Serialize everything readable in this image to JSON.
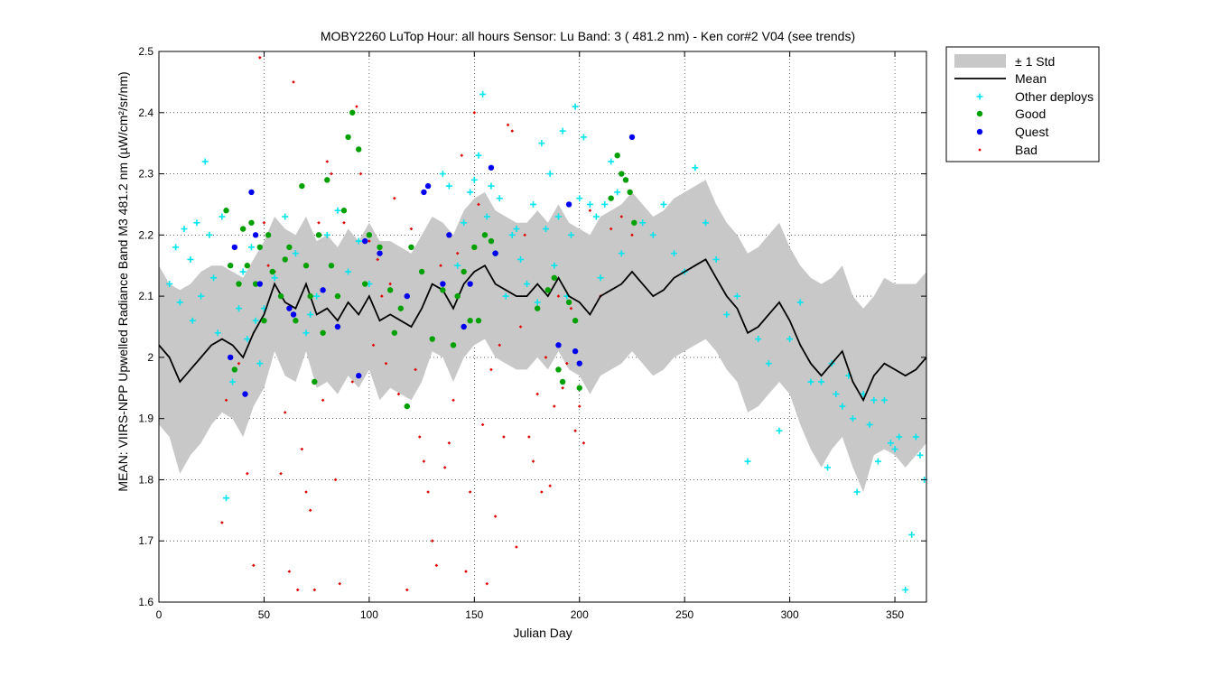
{
  "chart_data": {
    "type": "scatter",
    "title": "MOBY2260   LuTop  Hour: all hours  Sensor: Lu Band: 3 ( 481.2 nm)  - Ken cor#2 V04 (see trends)",
    "xlabel": "Julian Day",
    "ylabel": "MEAN: VIIRS-NPP Upwelled Radiance Band M3 481.2 nm (µW/cm²/sr/nm)",
    "xlim": [
      0,
      365
    ],
    "ylim": [
      1.6,
      2.5
    ],
    "xticks": [
      0,
      50,
      100,
      150,
      200,
      250,
      300,
      350
    ],
    "yticks": [
      1.6,
      1.7,
      1.8,
      1.9,
      2.0,
      2.1,
      2.2,
      2.3,
      2.4,
      2.5
    ],
    "xtick_labels": [
      "0",
      "50",
      "100",
      "150",
      "200",
      "250",
      "300",
      "350"
    ],
    "ytick_labels": [
      "1.6",
      "1.7",
      "1.8",
      "1.9",
      "2",
      "2.1",
      "2.2",
      "2.3",
      "2.4",
      "2.5"
    ],
    "grid": true,
    "legend_position": "outside-top-right",
    "legend": [
      "± 1 Std",
      "Mean",
      "Other deploys",
      "Good",
      "Quest",
      "Bad"
    ],
    "colors": {
      "std_band": "#c8c8c8",
      "mean": "#000000",
      "other": "#00e5ee",
      "good": "#00a000",
      "quest": "#0000ee",
      "bad": "#e00000"
    },
    "mean": {
      "x": [
        0,
        5,
        10,
        15,
        20,
        25,
        30,
        35,
        40,
        45,
        50,
        55,
        60,
        65,
        70,
        75,
        80,
        85,
        90,
        95,
        100,
        105,
        110,
        115,
        120,
        125,
        130,
        135,
        140,
        145,
        150,
        155,
        160,
        165,
        170,
        175,
        180,
        185,
        190,
        195,
        200,
        205,
        210,
        215,
        220,
        225,
        230,
        235,
        240,
        245,
        250,
        255,
        260,
        265,
        270,
        275,
        280,
        285,
        290,
        295,
        300,
        305,
        310,
        315,
        320,
        325,
        330,
        335,
        340,
        345,
        350,
        355,
        360,
        365
      ],
      "y": [
        2.02,
        2.0,
        1.96,
        1.98,
        2.0,
        2.02,
        2.03,
        2.02,
        2.0,
        2.04,
        2.07,
        2.12,
        2.09,
        2.08,
        2.12,
        2.07,
        2.08,
        2.06,
        2.09,
        2.07,
        2.1,
        2.06,
        2.07,
        2.06,
        2.05,
        2.08,
        2.12,
        2.11,
        2.08,
        2.12,
        2.14,
        2.15,
        2.12,
        2.11,
        2.1,
        2.1,
        2.12,
        2.1,
        2.13,
        2.1,
        2.09,
        2.07,
        2.1,
        2.11,
        2.12,
        2.14,
        2.12,
        2.1,
        2.11,
        2.13,
        2.14,
        2.15,
        2.16,
        2.13,
        2.1,
        2.08,
        2.04,
        2.05,
        2.07,
        2.09,
        2.06,
        2.02,
        1.99,
        1.97,
        1.99,
        2.01,
        1.96,
        1.93,
        1.97,
        1.99,
        1.98,
        1.97,
        1.98,
        2.0
      ]
    },
    "std": {
      "x": [
        0,
        5,
        10,
        15,
        20,
        25,
        30,
        35,
        40,
        45,
        50,
        55,
        60,
        65,
        70,
        75,
        80,
        85,
        90,
        95,
        100,
        105,
        110,
        115,
        120,
        125,
        130,
        135,
        140,
        145,
        150,
        155,
        160,
        165,
        170,
        175,
        180,
        185,
        190,
        195,
        200,
        205,
        210,
        215,
        220,
        225,
        230,
        235,
        240,
        245,
        250,
        255,
        260,
        265,
        270,
        275,
        280,
        285,
        290,
        295,
        300,
        305,
        310,
        315,
        320,
        325,
        330,
        335,
        340,
        345,
        350,
        355,
        360,
        365
      ],
      "upper": [
        2.15,
        2.12,
        2.11,
        2.12,
        2.14,
        2.15,
        2.15,
        2.14,
        2.13,
        2.16,
        2.19,
        2.23,
        2.21,
        2.2,
        2.23,
        2.19,
        2.2,
        2.18,
        2.21,
        2.19,
        2.22,
        2.19,
        2.19,
        2.18,
        2.17,
        2.2,
        2.23,
        2.22,
        2.2,
        2.24,
        2.26,
        2.27,
        2.24,
        2.23,
        2.22,
        2.22,
        2.24,
        2.22,
        2.25,
        2.22,
        2.21,
        2.2,
        2.23,
        2.24,
        2.25,
        2.27,
        2.25,
        2.23,
        2.24,
        2.26,
        2.27,
        2.28,
        2.29,
        2.25,
        2.22,
        2.2,
        2.17,
        2.18,
        2.2,
        2.22,
        2.18,
        2.15,
        2.13,
        2.12,
        2.13,
        2.15,
        2.1,
        2.08,
        2.1,
        2.13,
        2.12,
        2.12,
        2.12,
        2.14
      ],
      "lower": [
        1.89,
        1.87,
        1.81,
        1.84,
        1.86,
        1.89,
        1.91,
        1.9,
        1.87,
        1.92,
        1.95,
        2.01,
        1.97,
        1.96,
        2.01,
        1.95,
        1.96,
        1.94,
        1.97,
        1.95,
        1.98,
        1.93,
        1.95,
        1.94,
        1.93,
        1.96,
        2.01,
        2.0,
        1.96,
        2.0,
        2.02,
        2.03,
        2.0,
        1.99,
        1.98,
        1.98,
        2.0,
        1.98,
        2.01,
        1.98,
        1.97,
        1.94,
        1.97,
        1.98,
        1.99,
        2.01,
        1.99,
        1.97,
        1.98,
        2.0,
        2.01,
        2.02,
        2.03,
        2.01,
        1.98,
        1.96,
        1.91,
        1.92,
        1.94,
        1.96,
        1.94,
        1.89,
        1.85,
        1.82,
        1.85,
        1.87,
        1.82,
        1.78,
        1.84,
        1.85,
        1.84,
        1.82,
        1.84,
        1.86
      ]
    },
    "other": {
      "x": [
        5,
        8,
        10,
        12,
        15,
        16,
        18,
        20,
        22,
        24,
        26,
        28,
        30,
        32,
        35,
        38,
        40,
        42,
        44,
        46,
        48,
        50,
        55,
        60,
        65,
        70,
        72,
        75,
        80,
        85,
        90,
        95,
        100,
        135,
        138,
        142,
        145,
        148,
        150,
        152,
        154,
        156,
        158,
        160,
        162,
        165,
        168,
        170,
        172,
        175,
        178,
        180,
        182,
        184,
        186,
        188,
        190,
        192,
        194,
        196,
        198,
        200,
        202,
        205,
        208,
        210,
        212,
        215,
        218,
        220,
        230,
        235,
        240,
        245,
        250,
        255,
        260,
        265,
        270,
        275,
        280,
        285,
        290,
        295,
        300,
        305,
        310,
        315,
        318,
        320,
        322,
        325,
        328,
        330,
        332,
        335,
        338,
        340,
        342,
        345,
        348,
        350,
        352,
        355,
        358,
        360,
        362,
        364
      ],
      "y": [
        2.12,
        2.18,
        2.09,
        2.21,
        2.16,
        2.06,
        2.22,
        2.1,
        2.32,
        2.2,
        2.13,
        2.04,
        2.23,
        1.77,
        1.96,
        2.08,
        2.14,
        2.03,
        2.18,
        2.06,
        1.99,
        2.08,
        2.13,
        2.23,
        2.17,
        2.04,
        2.07,
        2.1,
        2.2,
        2.24,
        2.14,
        2.19,
        2.12,
        2.3,
        2.28,
        2.15,
        2.22,
        2.27,
        2.29,
        2.33,
        2.43,
        2.23,
        2.28,
        2.17,
        2.26,
        2.1,
        2.2,
        2.21,
        2.16,
        2.12,
        2.25,
        2.09,
        2.35,
        2.21,
        2.3,
        2.15,
        2.23,
        2.37,
        2.1,
        2.2,
        2.41,
        2.26,
        2.36,
        2.25,
        2.23,
        2.13,
        2.25,
        2.32,
        2.27,
        2.17,
        2.22,
        2.2,
        2.25,
        2.17,
        2.14,
        2.31,
        2.22,
        2.16,
        2.07,
        2.1,
        1.83,
        2.03,
        1.99,
        1.88,
        2.03,
        2.09,
        1.96,
        1.96,
        1.82,
        1.99,
        1.94,
        1.92,
        1.97,
        1.9,
        1.78,
        1.94,
        1.89,
        1.93,
        1.83,
        1.93,
        1.86,
        1.85,
        1.87,
        1.62,
        1.71,
        1.87,
        1.84,
        1.8
      ]
    },
    "good": {
      "x": [
        32,
        34,
        36,
        38,
        40,
        42,
        44,
        46,
        48,
        50,
        52,
        54,
        58,
        60,
        62,
        65,
        68,
        70,
        72,
        74,
        76,
        78,
        80,
        82,
        85,
        88,
        90,
        92,
        95,
        98,
        100,
        105,
        110,
        112,
        115,
        118,
        120,
        125,
        130,
        135,
        140,
        142,
        145,
        148,
        150,
        152,
        155,
        158,
        160,
        180,
        185,
        188,
        190,
        192,
        195,
        198,
        200,
        215,
        218,
        220,
        222,
        224,
        226
      ],
      "y": [
        2.24,
        2.15,
        1.98,
        2.12,
        2.21,
        2.15,
        2.22,
        2.12,
        2.18,
        2.06,
        2.2,
        2.14,
        2.1,
        2.16,
        2.18,
        2.06,
        2.28,
        2.15,
        2.1,
        1.96,
        2.2,
        2.04,
        2.29,
        2.15,
        2.1,
        2.24,
        2.36,
        2.4,
        2.34,
        2.12,
        2.2,
        2.18,
        2.11,
        2.04,
        2.08,
        1.92,
        2.18,
        2.14,
        2.03,
        2.11,
        2.02,
        2.1,
        2.14,
        2.06,
        2.18,
        2.06,
        2.2,
        2.19,
        2.17,
        2.08,
        2.11,
        2.13,
        1.98,
        1.96,
        2.09,
        2.06,
        1.95,
        2.26,
        2.33,
        2.3,
        2.29,
        2.27,
        2.22
      ]
    },
    "quest": {
      "x": [
        34,
        36,
        41,
        44,
        46,
        48,
        62,
        64,
        78,
        85,
        95,
        98,
        105,
        118,
        126,
        128,
        135,
        138,
        145,
        148,
        158,
        160,
        190,
        195,
        198,
        200,
        225
      ],
      "y": [
        2.0,
        2.18,
        1.94,
        2.27,
        2.2,
        2.12,
        2.08,
        2.07,
        2.11,
        2.05,
        1.97,
        2.19,
        2.17,
        2.1,
        2.27,
        2.28,
        2.12,
        2.2,
        2.05,
        2.12,
        2.31,
        2.17,
        2.02,
        2.25,
        2.01,
        1.99,
        2.36
      ]
    },
    "bad": {
      "x": [
        30,
        32,
        38,
        40,
        42,
        45,
        48,
        50,
        52,
        55,
        58,
        60,
        62,
        64,
        66,
        68,
        70,
        72,
        74,
        76,
        78,
        80,
        82,
        84,
        86,
        88,
        90,
        92,
        94,
        96,
        100,
        102,
        104,
        106,
        108,
        110,
        112,
        114,
        118,
        120,
        122,
        124,
        126,
        128,
        130,
        132,
        134,
        136,
        138,
        140,
        142,
        144,
        146,
        148,
        150,
        152,
        154,
        156,
        158,
        160,
        162,
        164,
        166,
        168,
        170,
        172,
        174,
        176,
        178,
        180,
        182,
        184,
        186,
        188,
        190,
        192,
        194,
        196,
        198,
        200,
        202,
        205,
        210,
        215,
        220,
        225
      ],
      "y": [
        1.73,
        1.93,
        1.99,
        2.14,
        1.81,
        1.66,
        2.49,
        2.22,
        2.15,
        2.14,
        1.81,
        1.91,
        1.65,
        2.45,
        1.62,
        1.85,
        1.78,
        1.75,
        1.62,
        2.22,
        1.93,
        2.32,
        2.3,
        1.8,
        1.63,
        2.22,
        2.36,
        1.96,
        2.41,
        2.3,
        2.19,
        2.02,
        2.16,
        2.1,
        1.99,
        2.12,
        2.26,
        1.94,
        1.62,
        2.21,
        1.98,
        1.87,
        1.83,
        1.78,
        1.7,
        1.66,
        2.15,
        1.82,
        1.86,
        1.93,
        2.17,
        2.33,
        1.65,
        1.78,
        2.4,
        2.25,
        1.89,
        1.63,
        1.98,
        1.74,
        2.02,
        1.87,
        2.38,
        2.37,
        1.69,
        2.05,
        2.2,
        1.87,
        1.83,
        1.94,
        1.78,
        2.0,
        1.79,
        1.92,
        2.1,
        1.95,
        1.99,
        2.08,
        1.88,
        1.92,
        1.86,
        2.24,
        2.1,
        2.21,
        2.23,
        2.2
      ]
    }
  }
}
